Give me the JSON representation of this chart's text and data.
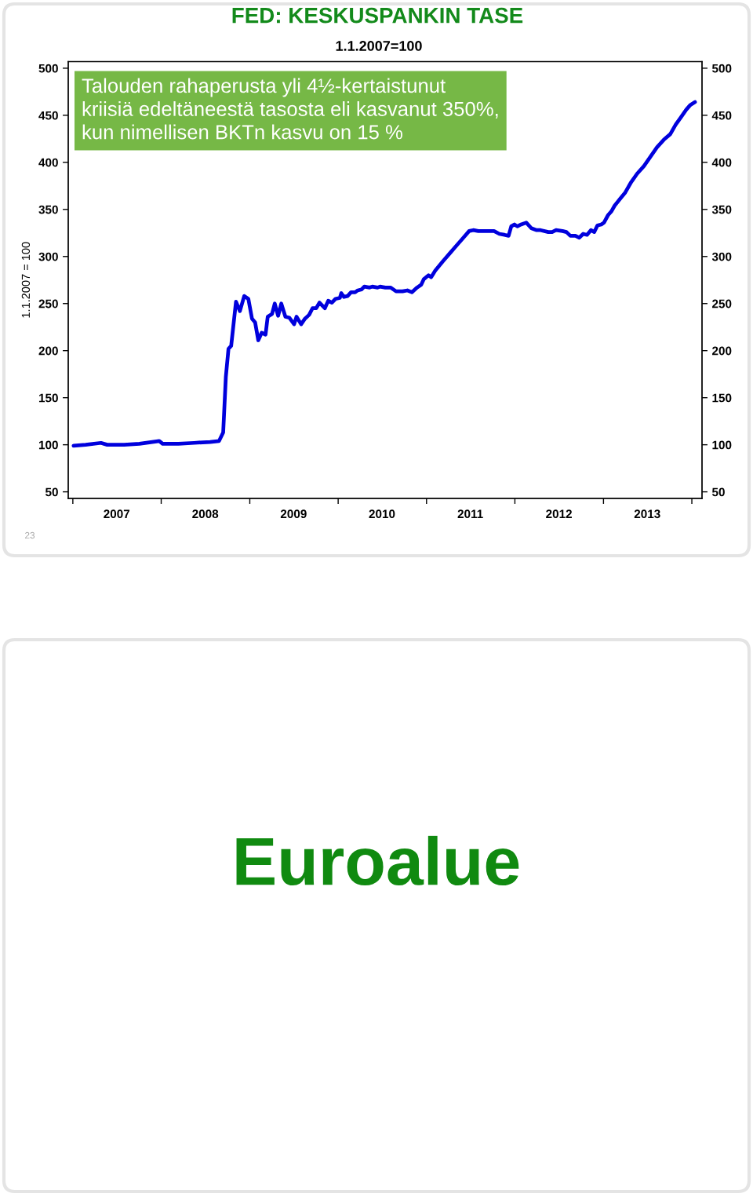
{
  "chart_data": {
    "type": "line",
    "title": "FED: KESKUSPANKIN TASE",
    "subtitle": "1.1.2007=100",
    "ylabel": "1.1.2007 = 100",
    "annotations": [
      "Talouden rahaperusta yli 4½-kertaistunut\nkriisiä edeltäneestä tasosta eli kasvanut 350%,\nkun nimellisen BKTn kasvu on 15 %",
      "23",
      "Euroalue"
    ],
    "x": [
      "2007-01-04",
      "2007-02-23",
      "2007-04-27",
      "2007-05-23",
      "2007-08-01",
      "2007-10-03",
      "2007-12-24",
      "2008-01-07",
      "2008-03-12",
      "2008-05-16",
      "2008-07-21",
      "2008-08-27",
      "2008-09-13",
      "2008-09-24",
      "2008-10-05",
      "2008-10-16",
      "2008-11-05",
      "2008-11-21",
      "2008-12-09",
      "2008-12-26",
      "2009-01-10",
      "2009-01-23",
      "2009-02-05",
      "2009-02-19",
      "2009-03-07",
      "2009-03-16",
      "2009-04-03",
      "2009-04-14",
      "2009-04-28",
      "2009-05-11",
      "2009-05-28",
      "2009-06-13",
      "2009-07-03",
      "2009-07-13",
      "2009-08-01",
      "2009-08-17",
      "2009-09-03",
      "2009-09-17",
      "2009-10-02",
      "2009-10-16",
      "2009-11-07",
      "2009-11-21",
      "2009-12-06",
      "2009-12-21",
      "2010-01-08",
      "2010-01-14",
      "2010-01-25",
      "2010-02-09",
      "2010-02-23",
      "2010-03-12",
      "2010-03-23",
      "2010-04-08",
      "2010-04-19",
      "2010-05-11",
      "2010-05-22",
      "2010-06-13",
      "2010-06-23",
      "2010-07-15",
      "2010-08-06",
      "2010-08-28",
      "2010-09-24",
      "2010-10-14",
      "2010-11-02",
      "2010-11-23",
      "2010-12-10",
      "2010-12-21",
      "2011-01-09",
      "2011-01-20",
      "2011-02-06",
      "2011-02-22",
      "2011-03-10",
      "2011-04-06",
      "2011-05-03",
      "2011-05-30",
      "2011-06-26",
      "2011-07-13",
      "2011-08-03",
      "2011-09-05",
      "2011-10-07",
      "2011-10-29",
      "2011-11-19",
      "2011-12-06",
      "2011-12-17",
      "2011-12-30",
      "2012-01-11",
      "2012-01-27",
      "2012-02-17",
      "2012-03-09",
      "2012-03-31",
      "2012-04-16",
      "2012-05-18",
      "2012-06-03",
      "2012-06-19",
      "2012-07-16",
      "2012-08-01",
      "2012-08-17",
      "2012-09-07",
      "2012-09-23",
      "2012-10-09",
      "2012-10-25",
      "2012-11-10",
      "2012-11-24",
      "2012-12-07",
      "2012-12-23",
      "2013-01-03",
      "2013-01-20",
      "2013-02-03",
      "2013-02-16",
      "2013-03-10",
      "2013-04-01",
      "2013-04-23",
      "2013-05-20",
      "2013-06-17",
      "2013-07-14",
      "2013-08-10",
      "2013-09-07",
      "2013-10-04",
      "2013-10-26",
      "2013-11-17",
      "2013-12-09",
      "2013-12-26",
      "2014-01-14"
    ],
    "series": [
      {
        "color": "#0000dd",
        "values": [
          99,
          100,
          102,
          100,
          100,
          101,
          104,
          101,
          101,
          102,
          103,
          104,
          113,
          172,
          202,
          205,
          252,
          242,
          258,
          255,
          234,
          230,
          211,
          219,
          217,
          236,
          239,
          250,
          237,
          250,
          236,
          235,
          228,
          236,
          228,
          234,
          238,
          245,
          245,
          251,
          245,
          253,
          251,
          255,
          256,
          261,
          257,
          258,
          262,
          262,
          264,
          265,
          268,
          267,
          268,
          267,
          268,
          267,
          267,
          263,
          263,
          264,
          262,
          267,
          270,
          276,
          280,
          278,
          285,
          290,
          295,
          303,
          311,
          319,
          327,
          328,
          327,
          327,
          327,
          324,
          323,
          322,
          332,
          334,
          332,
          334,
          336,
          330,
          328,
          328,
          326,
          326,
          328,
          327,
          326,
          322,
          322,
          320,
          324,
          323,
          328,
          326,
          333,
          334,
          336,
          344,
          348,
          354,
          361,
          368,
          378,
          388,
          396,
          406,
          416,
          424,
          430,
          440,
          448,
          456,
          461,
          464
        ]
      }
    ],
    "xlim": [
      "2006-12-13",
      "2014-02-12"
    ],
    "xticks": [
      {
        "value": "2007-01-01",
        "label": null
      },
      {
        "value": "2008-01-01",
        "label": null
      },
      {
        "value": "2009-01-01",
        "label": null
      },
      {
        "value": "2010-01-01",
        "label": null
      },
      {
        "value": "2011-01-01",
        "label": null
      },
      {
        "value": "2012-01-01",
        "label": null
      },
      {
        "value": "2013-01-01",
        "label": null
      },
      {
        "value": "2014-01-01",
        "label": null
      },
      {
        "value": "2007-07-01",
        "label": "2007"
      },
      {
        "value": "2008-07-01",
        "label": "2008"
      },
      {
        "value": "2009-07-01",
        "label": "2009"
      },
      {
        "value": "2010-07-01",
        "label": "2010"
      },
      {
        "value": "2011-07-01",
        "label": "2011"
      },
      {
        "value": "2012-07-01",
        "label": "2012"
      },
      {
        "value": "2013-07-01",
        "label": "2013"
      }
    ],
    "ylim": [
      43,
      507
    ],
    "yticks": [
      50,
      100,
      150,
      200,
      250,
      300,
      350,
      400,
      450,
      500
    ],
    "y2lim": [
      43,
      507
    ],
    "y2ticks": [
      50,
      100,
      150,
      200,
      250,
      300,
      350,
      400,
      450,
      500
    ]
  }
}
